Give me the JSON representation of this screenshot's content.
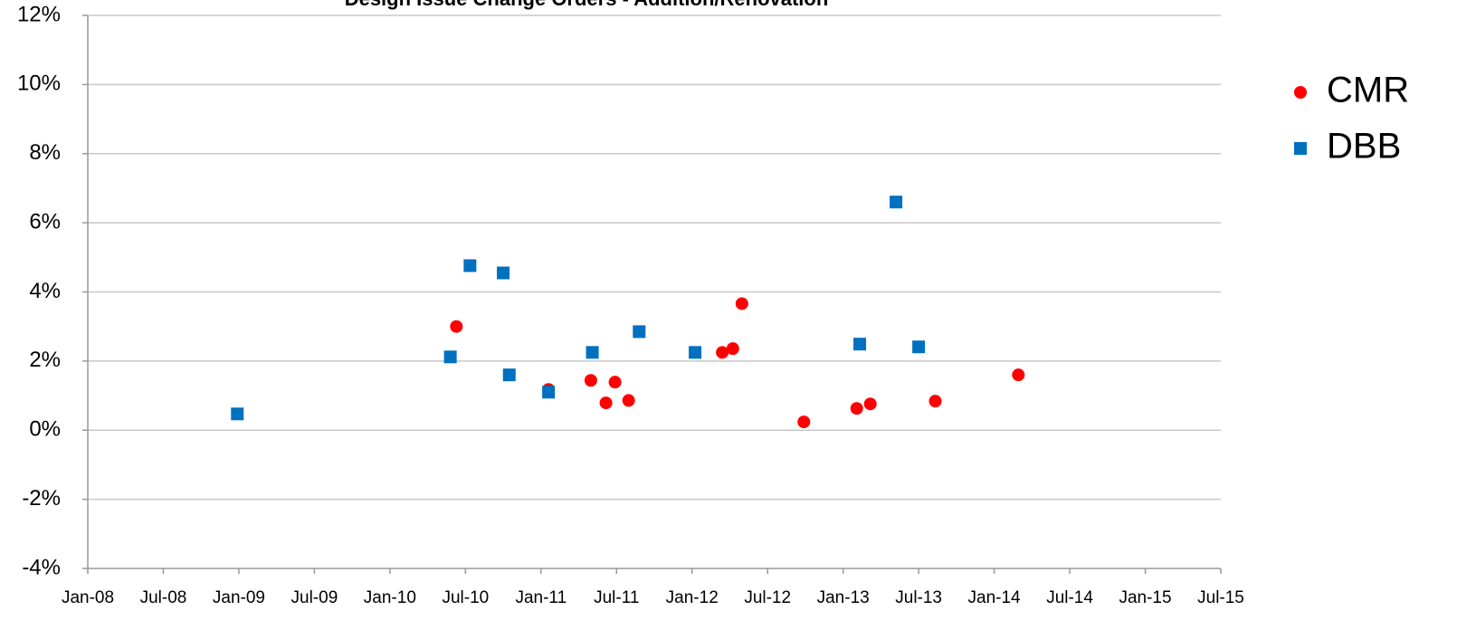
{
  "chart_data": {
    "type": "scatter",
    "title": "Design Issue Change Orders - Addition/Renovation",
    "series": [
      {
        "name": "CMR",
        "color": "#ff0000",
        "marker": "circle",
        "x": [
          2010.44,
          2011.05,
          2011.33,
          2011.43,
          2011.49,
          2011.58,
          2012.2,
          2012.27,
          2012.33,
          2012.74,
          2013.09,
          2013.18,
          2013.61,
          2014.16
        ],
        "values": [
          3.0,
          1.18,
          1.44,
          0.79,
          1.39,
          0.86,
          2.25,
          2.36,
          3.66,
          0.24,
          0.63,
          0.76,
          0.84,
          1.6
        ]
      },
      {
        "name": "DBB",
        "color": "#0070c0",
        "marker": "square",
        "x": [
          2008.99,
          2010.4,
          2010.53,
          2010.75,
          2010.79,
          2011.05,
          2011.34,
          2011.65,
          2012.02,
          2013.11,
          2013.35,
          2013.5
        ],
        "values": [
          0.47,
          2.12,
          4.76,
          4.55,
          1.6,
          1.1,
          2.25,
          2.85,
          2.25,
          2.49,
          6.6,
          2.41
        ]
      }
    ],
    "xlim": [
      2008,
      2015.5
    ],
    "xticks": [
      {
        "value": 2008,
        "label": "Jan-08"
      },
      {
        "value": 2008.5,
        "label": "Jul-08"
      },
      {
        "value": 2009,
        "label": "Jan-09"
      },
      {
        "value": 2009.5,
        "label": "Jul-09"
      },
      {
        "value": 2010,
        "label": "Jan-10"
      },
      {
        "value": 2010.5,
        "label": "Jul-10"
      },
      {
        "value": 2011,
        "label": "Jan-11"
      },
      {
        "value": 2011.5,
        "label": "Jul-11"
      },
      {
        "value": 2012,
        "label": "Jan-12"
      },
      {
        "value": 2012.5,
        "label": "Jul-12"
      },
      {
        "value": 2013,
        "label": "Jan-13"
      },
      {
        "value": 2013.5,
        "label": "Jul-13"
      },
      {
        "value": 2014,
        "label": "Jan-14"
      },
      {
        "value": 2014.5,
        "label": "Jul-14"
      },
      {
        "value": 2015,
        "label": "Jan-15"
      },
      {
        "value": 2015.5,
        "label": "Jul-15"
      }
    ],
    "ylim": [
      -4,
      12
    ],
    "yticks": [
      {
        "value": -4,
        "label": "-4%"
      },
      {
        "value": -2,
        "label": "-2%"
      },
      {
        "value": 0,
        "label": "0%"
      },
      {
        "value": 2,
        "label": "2%"
      },
      {
        "value": 4,
        "label": "4%"
      },
      {
        "value": 6,
        "label": "6%"
      },
      {
        "value": 8,
        "label": "8%"
      },
      {
        "value": 10,
        "label": "10%"
      },
      {
        "value": 12,
        "label": "12%"
      }
    ],
    "grid": true,
    "legend": "right"
  }
}
